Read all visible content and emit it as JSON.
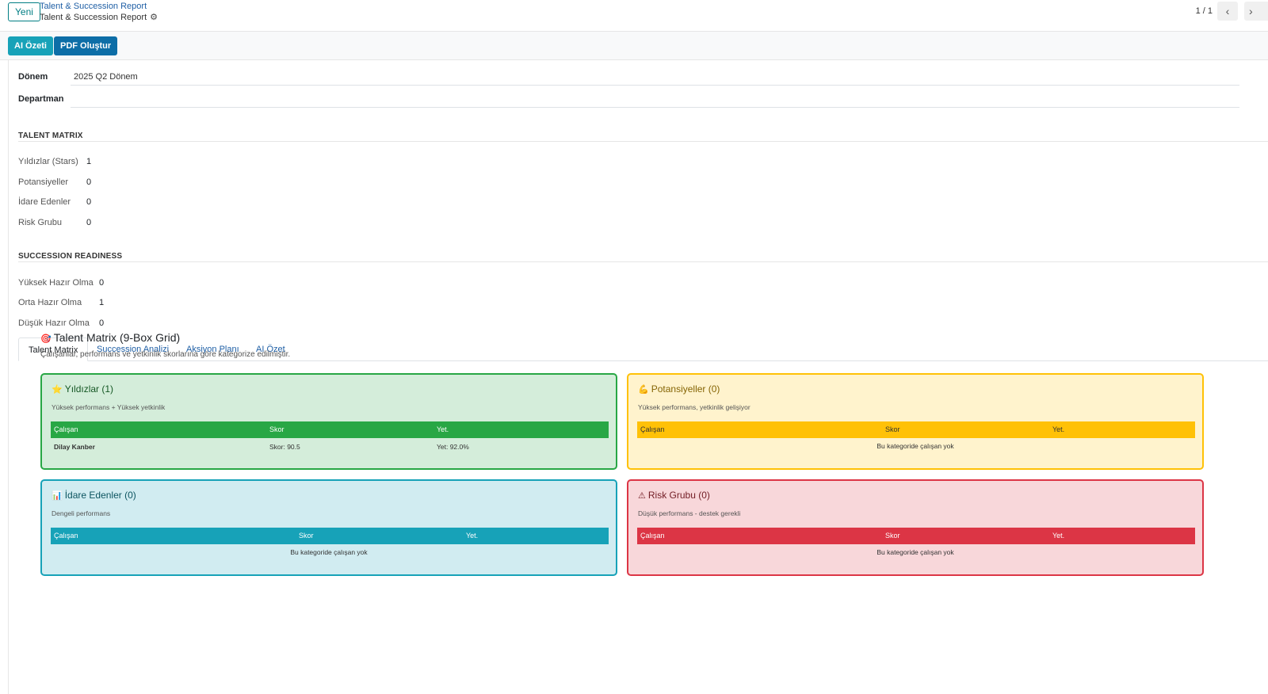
{
  "topbar": {
    "new_label": "Yeni",
    "breadcrumb_parent": "Talent & Succession Report",
    "breadcrumb_current": "Talent & Succession Report",
    "pager": "1 / 1"
  },
  "actions": {
    "ai_summary_label": "AI Özeti",
    "pdf_label": "PDF Oluştur"
  },
  "form": {
    "period_label": "Dönem",
    "period_value": "2025 Q2 Dönem",
    "department_label": "Departman",
    "department_value": ""
  },
  "talent_matrix_section": {
    "title": "TALENT MATRIX",
    "stats": [
      {
        "label": "Yıldızlar (Stars)",
        "value": "1"
      },
      {
        "label": "Potansiyeller",
        "value": "0"
      },
      {
        "label": "İdare Edenler",
        "value": "0"
      },
      {
        "label": "Risk Grubu",
        "value": "0"
      }
    ]
  },
  "succession_section": {
    "title": "SUCCESSION READINESS",
    "stats": [
      {
        "label": "Yüksek Hazır Olma",
        "value": "0"
      },
      {
        "label": "Orta Hazır Olma",
        "value": "1"
      },
      {
        "label": "Düşük Hazır Olma",
        "value": "0"
      }
    ]
  },
  "tabs": [
    "Talent Matrix",
    "Succession Analizi",
    "Aksiyon Planı",
    "AI Özet"
  ],
  "matrix": {
    "title": "Talent Matrix (9-Box Grid)",
    "subtitle": "Çalışanlar, performans ve yetkinlik skorlarına göre kategorize edilmiştir.",
    "empty_text": "Bu kategoride çalışan yok",
    "columns": [
      "Çalışan",
      "Skor",
      "Yet."
    ],
    "boxes": [
      {
        "title": "Yıldızlar (1)",
        "desc": "Yüksek performans + Yüksek yetkinlik",
        "icon": "star-icon",
        "color": "#28a745",
        "rows": [
          {
            "name": "Dilay Kanber",
            "score": "Skor: 90.5",
            "comp": "Yet: 92.0%"
          }
        ]
      },
      {
        "title": "Potansiyeller (0)",
        "desc": "Yüksek performans, yetkinlik gelişiyor",
        "icon": "muscle-icon",
        "color": "#ffc107",
        "rows": []
      },
      {
        "title": "İdare Edenler (0)",
        "desc": "Dengeli performans",
        "icon": "bar-chart-icon",
        "color": "#17a2b8",
        "rows": []
      },
      {
        "title": "Risk Grubu (0)",
        "desc": "Düşük performans - destek gerekli",
        "icon": "warning-icon",
        "color": "#dc3545",
        "rows": []
      }
    ]
  }
}
